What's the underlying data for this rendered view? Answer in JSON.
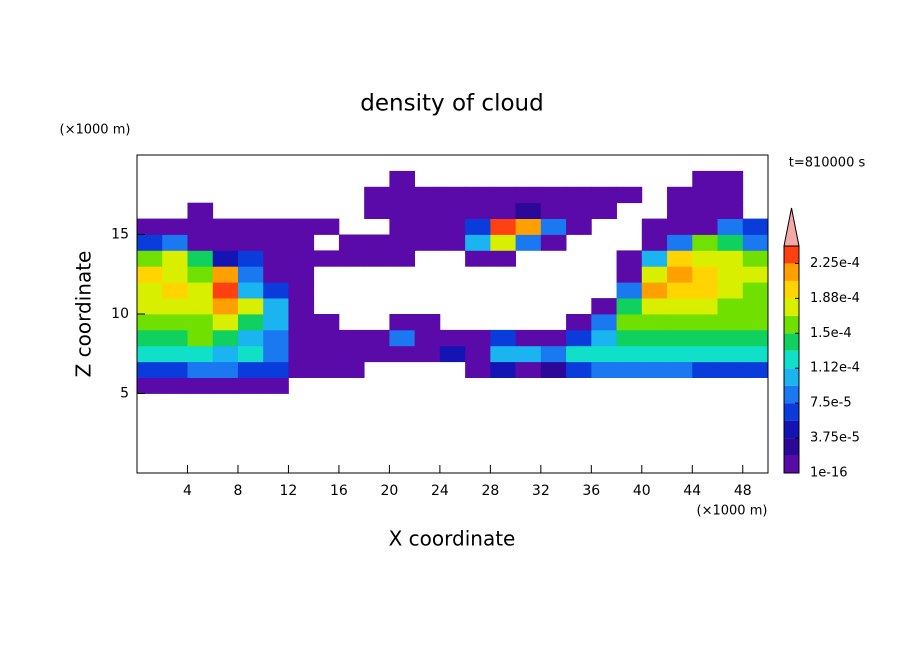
{
  "chart_data": {
    "type": "contour",
    "title": "density of cloud",
    "x_label": "X coordinate",
    "y_label": "Z coordinate",
    "x_unit": "(×1000 m)",
    "y_unit": "(×1000 m)",
    "annotation": "t=810000 s",
    "xlim": [
      0,
      50
    ],
    "ylim": [
      0,
      20
    ],
    "xticks": [
      4,
      8,
      12,
      16,
      20,
      24,
      28,
      32,
      36,
      40,
      44,
      48
    ],
    "yticks": [
      5,
      10,
      15
    ],
    "x": [
      1,
      3,
      5,
      7,
      9,
      11,
      13,
      15,
      17,
      19,
      21,
      23,
      25,
      27,
      29,
      31,
      33,
      35,
      37,
      39,
      41,
      43,
      45,
      47,
      49
    ],
    "y": [
      5.5,
      6.5,
      7.5,
      8.5,
      9.5,
      10.5,
      11.5,
      12.5,
      13.5,
      14.5,
      15.5,
      16.5,
      17.5,
      18.5
    ],
    "values": [
      [
        1e-06,
        1e-06,
        1e-06,
        1e-06,
        1e-06,
        1e-06,
        null,
        null,
        null,
        null,
        null,
        null,
        null,
        null,
        null,
        null,
        null,
        null,
        null,
        null,
        null,
        null,
        null,
        null,
        null
      ],
      [
        6.5e-05,
        6.5e-05,
        8.5e-05,
        8.5e-05,
        6.5e-05,
        6.5e-05,
        1e-06,
        1e-06,
        1e-06,
        null,
        null,
        null,
        null,
        1e-06,
        4.5e-05,
        1e-06,
        2.5e-05,
        6.5e-05,
        8.5e-05,
        8.5e-05,
        8.5e-05,
        8.5e-05,
        6.5e-05,
        6.5e-05,
        6.5e-05
      ],
      [
        0.00012,
        0.00012,
        0.00012,
        0.0001,
        0.00012,
        8.5e-05,
        1e-06,
        1e-06,
        1e-06,
        1e-06,
        1e-06,
        1e-06,
        4.5e-05,
        1e-06,
        0.0001,
        0.0001,
        8.5e-05,
        0.00012,
        0.00012,
        0.00012,
        0.00012,
        0.00012,
        0.00012,
        0.00012,
        0.00012
      ],
      [
        0.00014,
        0.00014,
        0.00016,
        0.00014,
        0.0001,
        8.5e-05,
        1e-06,
        1e-06,
        1e-06,
        1e-06,
        8.5e-05,
        1e-06,
        1e-06,
        1e-06,
        6.5e-05,
        1e-06,
        1e-06,
        6.5e-05,
        0.0001,
        0.00014,
        0.00014,
        0.00014,
        0.00014,
        0.00014,
        0.00014
      ],
      [
        0.00016,
        0.00016,
        0.00016,
        0.00018,
        0.00014,
        0.0001,
        1e-06,
        1e-06,
        null,
        null,
        1e-06,
        1e-06,
        null,
        null,
        null,
        null,
        null,
        1e-06,
        8.5e-05,
        0.00016,
        0.00016,
        0.00016,
        0.00016,
        0.00016,
        0.00016
      ],
      [
        0.00018,
        0.00018,
        0.00018,
        0.00022,
        0.00018,
        0.0001,
        1e-06,
        null,
        null,
        null,
        null,
        null,
        null,
        null,
        null,
        null,
        null,
        null,
        1e-06,
        0.00014,
        0.00018,
        0.00018,
        0.00018,
        0.00016,
        0.00016
      ],
      [
        0.00018,
        0.0002,
        0.00018,
        0.00023,
        0.0001,
        6.5e-05,
        1e-06,
        null,
        null,
        null,
        null,
        null,
        null,
        null,
        null,
        null,
        null,
        null,
        null,
        8.5e-05,
        0.00022,
        0.0002,
        0.0002,
        0.00018,
        0.00016
      ],
      [
        0.0002,
        0.00018,
        0.00016,
        0.00022,
        8.5e-05,
        1e-06,
        1e-06,
        null,
        null,
        null,
        null,
        null,
        null,
        null,
        null,
        null,
        null,
        null,
        null,
        1e-06,
        0.00018,
        0.00022,
        0.0002,
        0.00018,
        0.00018
      ],
      [
        0.00016,
        0.00018,
        0.00014,
        4.5e-05,
        6.5e-05,
        1e-06,
        1e-06,
        1e-06,
        1e-06,
        1e-06,
        1e-06,
        null,
        null,
        1e-06,
        1e-06,
        null,
        null,
        null,
        null,
        1e-06,
        0.0001,
        0.0002,
        0.00018,
        0.00018,
        0.00016
      ],
      [
        6.5e-05,
        8.5e-05,
        1e-06,
        1e-06,
        1e-06,
        1e-06,
        1e-06,
        null,
        1e-06,
        1e-06,
        1e-06,
        1e-06,
        1e-06,
        0.0001,
        0.00018,
        8.5e-05,
        1e-06,
        null,
        null,
        null,
        1e-06,
        8.5e-05,
        0.00016,
        0.00014,
        8.5e-05
      ],
      [
        1e-06,
        1e-06,
        1e-06,
        1e-06,
        1e-06,
        1e-06,
        1e-06,
        1e-06,
        null,
        null,
        1e-06,
        1e-06,
        1e-06,
        6.5e-05,
        0.00023,
        0.00022,
        8.5e-05,
        1e-06,
        null,
        null,
        1e-06,
        1e-06,
        1e-06,
        8.5e-05,
        6.5e-05
      ],
      [
        null,
        null,
        1e-06,
        null,
        null,
        null,
        null,
        null,
        null,
        1e-06,
        1e-06,
        1e-06,
        1e-06,
        1e-06,
        1e-06,
        2.5e-05,
        1e-06,
        1e-06,
        1e-06,
        null,
        null,
        1e-06,
        1e-06,
        1e-06,
        null
      ],
      [
        null,
        null,
        null,
        null,
        null,
        null,
        null,
        null,
        null,
        1e-06,
        1e-06,
        1e-06,
        1e-06,
        1e-06,
        1e-06,
        1e-06,
        1e-06,
        1e-06,
        1e-06,
        1e-06,
        null,
        1e-06,
        1e-06,
        1e-06,
        null
      ],
      [
        null,
        null,
        null,
        null,
        null,
        null,
        null,
        null,
        null,
        null,
        1e-06,
        null,
        null,
        null,
        null,
        null,
        null,
        null,
        null,
        null,
        null,
        null,
        1e-06,
        1e-06,
        null
      ]
    ],
    "colorbar": {
      "levels": [
        1e-16,
        1.875e-05,
        3.75e-05,
        5.625e-05,
        7.5e-05,
        9.375e-05,
        0.0001125,
        0.00013125,
        0.00015,
        0.00016875,
        0.0001875,
        0.00020625,
        0.000225,
        0.00024375
      ],
      "colors": [
        "#5a0aa8",
        "#2c0898",
        "#1414b4",
        "#0a3cdc",
        "#1a78f0",
        "#1ab4f0",
        "#10e0c8",
        "#10d060",
        "#70e000",
        "#d8f000",
        "#ffd400",
        "#ffa000",
        "#ff4010"
      ],
      "extend_color": "#f4a8a8",
      "ticks": [
        1e-16,
        {
          "value": 3.75e-05,
          "label": "3.75e-5"
        },
        {
          "value": 7.5e-05,
          "label": "7.5e-5"
        },
        {
          "value": 0.0001125,
          "label": "1.12e-4"
        },
        {
          "value": 0.00015,
          "label": "1.5e-4"
        },
        {
          "value": 0.0001875,
          "label": "1.88e-4"
        },
        {
          "value": 0.000225,
          "label": "2.25e-4"
        }
      ]
    }
  }
}
